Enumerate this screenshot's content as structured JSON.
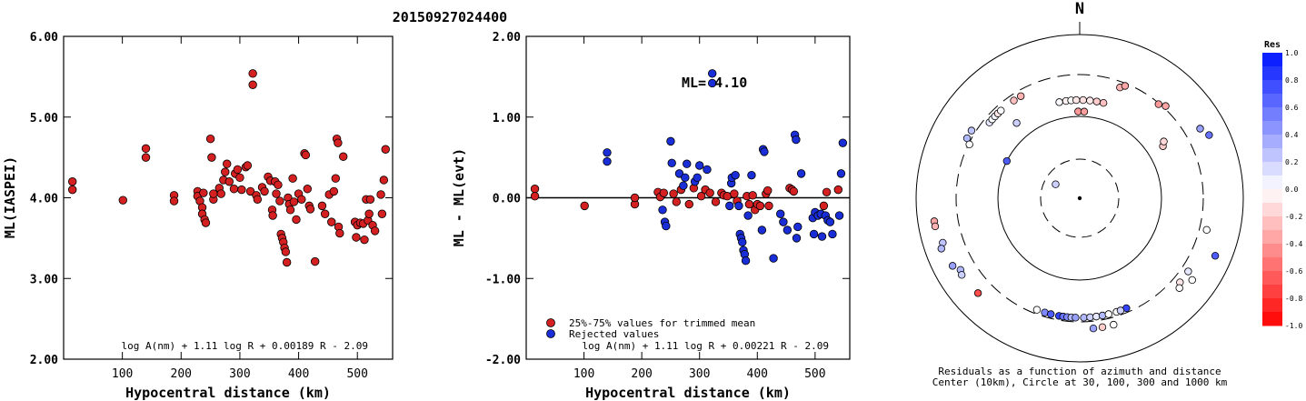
{
  "title": "20150927024400",
  "chart_data": [
    {
      "type": "scatter",
      "ylabel": "ML(IASPEI)",
      "xlabel": "Hypocentral distance (km)",
      "xlim": [
        0,
        560
      ],
      "ylim": [
        2.0,
        6.0
      ],
      "x_ticks": [
        "100",
        "200",
        "300",
        "400",
        "500"
      ],
      "y_ticks": [
        "2.00",
        "3.00",
        "4.00",
        "5.00",
        "6.00"
      ],
      "formula": "log A(nm) + 1.11 log R + 0.00189 R - 2.09",
      "points_color": "#d42020",
      "points": [
        [
          15,
          4.2
        ],
        [
          15,
          4.1
        ],
        [
          101,
          3.97
        ],
        [
          140,
          4.61
        ],
        [
          140,
          4.5
        ],
        [
          188,
          4.03
        ],
        [
          188,
          3.96
        ],
        [
          228,
          4.08
        ],
        [
          228,
          4.02
        ],
        [
          232,
          3.96
        ],
        [
          236,
          3.88
        ],
        [
          236,
          3.8
        ],
        [
          238,
          4.06
        ],
        [
          240,
          3.73
        ],
        [
          242,
          3.69
        ],
        [
          250,
          4.73
        ],
        [
          252,
          4.5
        ],
        [
          255,
          3.98
        ],
        [
          255,
          4.05
        ],
        [
          265,
          4.12
        ],
        [
          268,
          4.05
        ],
        [
          272,
          4.22
        ],
        [
          275,
          4.32
        ],
        [
          278,
          4.42
        ],
        [
          282,
          4.2
        ],
        [
          290,
          4.11
        ],
        [
          292,
          4.3
        ],
        [
          296,
          4.35
        ],
        [
          300,
          4.25
        ],
        [
          303,
          4.1
        ],
        [
          310,
          4.38
        ],
        [
          313,
          4.4
        ],
        [
          318,
          4.08
        ],
        [
          322,
          5.54
        ],
        [
          322,
          5.4
        ],
        [
          328,
          4.03
        ],
        [
          330,
          3.98
        ],
        [
          338,
          4.13
        ],
        [
          342,
          4.08
        ],
        [
          348,
          4.26
        ],
        [
          352,
          4.21
        ],
        [
          355,
          3.85
        ],
        [
          356,
          3.78
        ],
        [
          360,
          4.2
        ],
        [
          362,
          4.05
        ],
        [
          365,
          4.16
        ],
        [
          368,
          3.96
        ],
        [
          370,
          3.55
        ],
        [
          372,
          3.5
        ],
        [
          374,
          3.45
        ],
        [
          376,
          3.38
        ],
        [
          378,
          3.33
        ],
        [
          380,
          3.2
        ],
        [
          382,
          4.0
        ],
        [
          384,
          3.92
        ],
        [
          386,
          3.85
        ],
        [
          390,
          4.24
        ],
        [
          392,
          3.95
        ],
        [
          396,
          3.73
        ],
        [
          400,
          4.05
        ],
        [
          405,
          3.98
        ],
        [
          410,
          4.55
        ],
        [
          412,
          4.53
        ],
        [
          415,
          4.11
        ],
        [
          418,
          3.9
        ],
        [
          420,
          3.86
        ],
        [
          428,
          3.21
        ],
        [
          440,
          3.9
        ],
        [
          445,
          3.8
        ],
        [
          452,
          4.04
        ],
        [
          456,
          3.7
        ],
        [
          460,
          4.08
        ],
        [
          463,
          4.24
        ],
        [
          465,
          4.73
        ],
        [
          467,
          4.68
        ],
        [
          468,
          3.64
        ],
        [
          470,
          3.56
        ],
        [
          476,
          4.51
        ],
        [
          496,
          3.7
        ],
        [
          498,
          3.51
        ],
        [
          500,
          3.66
        ],
        [
          505,
          3.69
        ],
        [
          510,
          3.68
        ],
        [
          512,
          3.48
        ],
        [
          515,
          3.98
        ],
        [
          518,
          3.72
        ],
        [
          520,
          3.8
        ],
        [
          522,
          3.98
        ],
        [
          526,
          3.66
        ],
        [
          530,
          3.59
        ],
        [
          540,
          4.04
        ],
        [
          542,
          3.8
        ],
        [
          545,
          4.22
        ],
        [
          548,
          4.6
        ]
      ]
    },
    {
      "type": "scatter",
      "ylabel": "ML - ML(evt)",
      "xlabel": "Hypocentral distance (km)",
      "xlim": [
        0,
        560
      ],
      "ylim": [
        -2.0,
        2.0
      ],
      "x_ticks": [
        "100",
        "200",
        "300",
        "400",
        "500"
      ],
      "y_ticks": [
        "-2.00",
        "-1.00",
        "0.00",
        "1.00",
        "2.00"
      ],
      "annotation": "ML= 4.10",
      "formula": "log A(nm) + 1.11 log R + 0.00221 R - 2.09",
      "legend": [
        {
          "label": "25%-75% values for trimmed mean",
          "color": "#d42020"
        },
        {
          "label": "Rejected values",
          "color": "#1a2ed8"
        }
      ],
      "legend_placement": "bottom-left",
      "series": [
        {
          "name": "25%-75% values for trimmed mean",
          "color": "#d42020",
          "points": [
            [
              15,
              0.11
            ],
            [
              15,
              0.02
            ],
            [
              101,
              -0.1
            ],
            [
              188,
              -0.08
            ],
            [
              188,
              0.0
            ],
            [
              228,
              0.07
            ],
            [
              232,
              0.01
            ],
            [
              238,
              0.06
            ],
            [
              255,
              0.05
            ],
            [
              260,
              -0.05
            ],
            [
              268,
              0.1
            ],
            [
              282,
              -0.08
            ],
            [
              290,
              0.12
            ],
            [
              303,
              0.02
            ],
            [
              310,
              0.1
            ],
            [
              318,
              0.06
            ],
            [
              328,
              -0.05
            ],
            [
              338,
              0.06
            ],
            [
              342,
              0.03
            ],
            [
              348,
              0.02
            ],
            [
              360,
              0.05
            ],
            [
              365,
              -0.04
            ],
            [
              382,
              0.02
            ],
            [
              386,
              -0.08
            ],
            [
              392,
              0.03
            ],
            [
              396,
              -0.15
            ],
            [
              400,
              -0.08
            ],
            [
              405,
              -0.1
            ],
            [
              415,
              0.05
            ],
            [
              418,
              0.09
            ],
            [
              420,
              -0.1
            ],
            [
              456,
              0.12
            ],
            [
              460,
              0.1
            ],
            [
              463,
              0.08
            ],
            [
              515,
              -0.1
            ],
            [
              520,
              0.07
            ],
            [
              540,
              0.1
            ]
          ]
        },
        {
          "name": "Rejected values",
          "color": "#1a2ed8",
          "points": [
            [
              140,
              0.56
            ],
            [
              140,
              0.45
            ],
            [
              236,
              -0.15
            ],
            [
              240,
              -0.3
            ],
            [
              242,
              -0.35
            ],
            [
              250,
              0.7
            ],
            [
              252,
              0.43
            ],
            [
              265,
              0.3
            ],
            [
              272,
              0.15
            ],
            [
              275,
              0.25
            ],
            [
              278,
              0.42
            ],
            [
              292,
              0.2
            ],
            [
              296,
              0.25
            ],
            [
              300,
              0.4
            ],
            [
              313,
              0.35
            ],
            [
              322,
              1.54
            ],
            [
              322,
              1.42
            ],
            [
              352,
              -0.1
            ],
            [
              355,
              0.18
            ],
            [
              356,
              0.25
            ],
            [
              362,
              0.28
            ],
            [
              368,
              -0.1
            ],
            [
              370,
              -0.45
            ],
            [
              372,
              -0.5
            ],
            [
              374,
              -0.55
            ],
            [
              376,
              -0.65
            ],
            [
              378,
              -0.7
            ],
            [
              380,
              -0.78
            ],
            [
              384,
              -0.22
            ],
            [
              390,
              0.28
            ],
            [
              408,
              -0.4
            ],
            [
              410,
              0.6
            ],
            [
              412,
              0.57
            ],
            [
              428,
              -0.75
            ],
            [
              440,
              -0.2
            ],
            [
              445,
              -0.3
            ],
            [
              452,
              -0.4
            ],
            [
              465,
              0.78
            ],
            [
              467,
              0.72
            ],
            [
              468,
              -0.5
            ],
            [
              470,
              -0.36
            ],
            [
              476,
              0.3
            ],
            [
              496,
              -0.25
            ],
            [
              498,
              -0.45
            ],
            [
              500,
              -0.18
            ],
            [
              505,
              -0.22
            ],
            [
              510,
              -0.2
            ],
            [
              512,
              -0.48
            ],
            [
              518,
              -0.22
            ],
            [
              522,
              -0.28
            ],
            [
              526,
              -0.3
            ],
            [
              530,
              -0.45
            ],
            [
              542,
              -0.22
            ],
            [
              545,
              0.3
            ],
            [
              548,
              0.68
            ]
          ]
        }
      ]
    },
    {
      "type": "scatter",
      "polar": true,
      "north_label": "N",
      "caption_line1": "Residuals as a function of azimuth and distance",
      "caption_line2": "Center (10km), Circle at 30, 100, 300 and 1000 km",
      "colorbar_title": "Res",
      "colorbar_ticks": [
        "1.0",
        "0.8",
        "0.6",
        "0.4",
        "0.2",
        "0.0",
        "-0.2",
        "-0.4",
        "-0.6",
        "-0.8",
        "-1.0"
      ],
      "points": [
        [
          -12,
          0.6,
          0.02
        ],
        [
          -8,
          0.6,
          -0.05
        ],
        [
          -5,
          0.6,
          0.0
        ],
        [
          -2,
          0.6,
          -0.1
        ],
        [
          2,
          0.6,
          -0.12
        ],
        [
          6,
          0.6,
          -0.08
        ],
        [
          10,
          0.6,
          -0.2
        ],
        [
          14,
          0.6,
          -0.25
        ],
        [
          -30,
          0.72,
          -0.3
        ],
        [
          -34,
          0.72,
          -0.25
        ],
        [
          20,
          0.72,
          -0.3
        ],
        [
          22,
          0.74,
          -0.35
        ],
        [
          40,
          0.75,
          -0.4
        ],
        [
          43,
          0.77,
          -0.35
        ],
        [
          -1,
          0.53,
          -0.4
        ],
        [
          3,
          0.53,
          -0.38
        ],
        [
          -50,
          0.72,
          0.1
        ],
        [
          -48,
          0.72,
          0.0
        ],
        [
          -46,
          0.72,
          0.05
        ],
        [
          -44,
          0.72,
          -0.1
        ],
        [
          -42,
          0.72,
          0.02
        ],
        [
          -40,
          0.6,
          0.2
        ],
        [
          -58,
          0.78,
          0.25
        ],
        [
          -62,
          0.78,
          0.3
        ],
        [
          -64,
          0.75,
          0.0
        ],
        [
          -63,
          0.5,
          0.7
        ],
        [
          60,
          0.85,
          0.4
        ],
        [
          64,
          0.88,
          0.6
        ],
        [
          58,
          0.6,
          -0.2
        ],
        [
          56,
          0.62,
          -0.15
        ],
        [
          -99,
          0.9,
          -0.35
        ],
        [
          -101,
          0.9,
          -0.3
        ],
        [
          -108,
          0.88,
          0.25
        ],
        [
          -110,
          0.9,
          0.3
        ],
        [
          -118,
          0.88,
          0.4
        ],
        [
          -121,
          0.85,
          0.3
        ],
        [
          -123,
          0.86,
          0.2
        ],
        [
          -133,
          0.85,
          -0.7
        ],
        [
          104,
          0.8,
          0.0
        ],
        [
          124,
          0.8,
          0.1
        ],
        [
          126,
          0.85,
          0.0
        ],
        [
          130,
          0.8,
          -0.1
        ],
        [
          113,
          0.9,
          0.7
        ],
        [
          132,
          0.82,
          0.0
        ],
        [
          -60,
          0.17,
          0.2
        ],
        [
          -159,
          0.73,
          0.0
        ],
        [
          -163,
          0.73,
          0.5
        ],
        [
          -166,
          0.73,
          0.7
        ],
        [
          -170,
          0.73,
          0.8
        ],
        [
          -172,
          0.73,
          0.6
        ],
        [
          -174,
          0.73,
          0.5
        ],
        [
          -176,
          0.73,
          0.3
        ],
        [
          -178,
          0.73,
          0.4
        ],
        [
          178,
          0.73,
          0.3
        ],
        [
          175,
          0.73,
          0.2
        ],
        [
          172,
          0.73,
          0.1
        ],
        [
          169,
          0.73,
          0.3
        ],
        [
          166,
          0.73,
          0.0
        ],
        [
          162,
          0.73,
          0.0
        ],
        [
          157,
          0.73,
          0.8
        ],
        [
          160,
          0.73,
          0.2
        ],
        [
          174,
          0.8,
          0.4
        ],
        [
          170,
          0.8,
          -0.2
        ],
        [
          165,
          0.8,
          0.0
        ]
      ]
    }
  ]
}
